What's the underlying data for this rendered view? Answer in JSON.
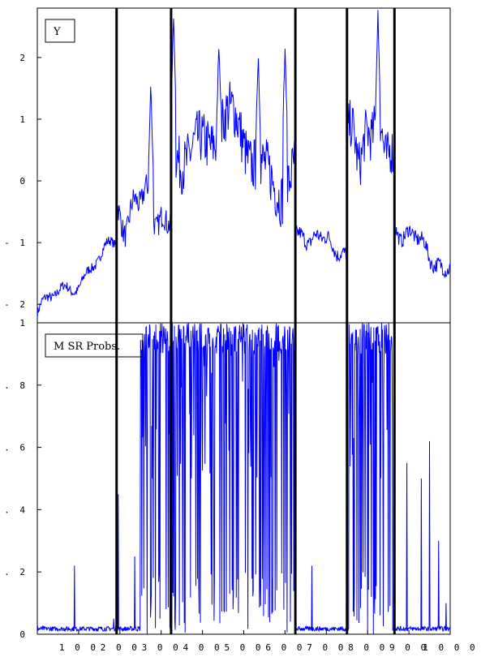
{
  "chart_data": [
    {
      "type": "line",
      "title": "",
      "xlabel": "",
      "ylabel": "",
      "legend": {
        "label": "Y",
        "placement": "top-left"
      },
      "xlim": [
        0,
        1000
      ],
      "ylim": [
        -2.3,
        2.8
      ],
      "y_ticks": [
        {
          "value": 2,
          "label": "2"
        },
        {
          "value": 1,
          "label": "1"
        },
        {
          "value": 0,
          "label": "0"
        },
        {
          "value": -1,
          "label": "- 1"
        },
        {
          "value": -2,
          "label": "- 2"
        }
      ],
      "regime_breaks": [
        192,
        324,
        625,
        750,
        865
      ],
      "series": [
        {
          "color": "#0000ff",
          "segments": [
            {
              "x": [
                0,
                192
              ],
              "start": -2.15,
              "end": -1.05,
              "wobble": 0.25,
              "noise": 0.08
            },
            {
              "x": [
                192,
                324
              ],
              "start": -0.45,
              "end": -0.45,
              "wobble": 0.55,
              "noise": 0.2,
              "peaks": [
                [
                  275,
                  1.6
                ]
              ]
            },
            {
              "x": [
                324,
                625
              ],
              "start": 0.9,
              "end": 0.2,
              "wobble": 0.8,
              "noise": 0.45,
              "peaks": [
                [
                  330,
                  2.7
                ],
                [
                  440,
                  2.3
                ],
                [
                  535,
                  2.1
                ],
                [
                  600,
                  2.2
                ]
              ]
            },
            {
              "x": [
                625,
                750
              ],
              "start": -0.8,
              "end": -1.15,
              "wobble": 0.2,
              "noise": 0.12
            },
            {
              "x": [
                750,
                865
              ],
              "start": 0.8,
              "end": 0.6,
              "wobble": 0.6,
              "noise": 0.4,
              "peaks": [
                [
                  825,
                  2.7
                ]
              ]
            },
            {
              "x": [
                865,
                1000
              ],
              "start": -0.7,
              "end": -1.45,
              "wobble": 0.25,
              "noise": 0.12
            }
          ]
        }
      ]
    },
    {
      "type": "line",
      "title": "",
      "xlabel": "",
      "ylabel": "",
      "legend": {
        "label": "M SR Probs.",
        "placement": "top-left"
      },
      "xlim": [
        0,
        1000
      ],
      "ylim": [
        0,
        1
      ],
      "x_ticks": [
        {
          "value": 100,
          "label": "1 0 0"
        },
        {
          "value": 200,
          "label": "2 0 0"
        },
        {
          "value": 300,
          "label": "3 0 0"
        },
        {
          "value": 400,
          "label": "4 0 0"
        },
        {
          "value": 500,
          "label": "5 0 0"
        },
        {
          "value": 600,
          "label": "6 0 0"
        },
        {
          "value": 700,
          "label": "7 0 0"
        },
        {
          "value": 800,
          "label": "8 0 0"
        },
        {
          "value": 900,
          "label": "9 0 0"
        },
        {
          "value": 1000,
          "label": "1 0 0 0"
        }
      ],
      "y_ticks": [
        {
          "value": 1,
          "label": "1"
        },
        {
          "value": 0.8,
          "label": "0 . 8"
        },
        {
          "value": 0.6,
          "label": "0 . 6"
        },
        {
          "value": 0.4,
          "label": "0 . 4"
        },
        {
          "value": 0.2,
          "label": "0 . 2"
        },
        {
          "value": 0,
          "label": "0"
        }
      ],
      "regime_breaks": [
        192,
        324,
        625,
        750,
        865
      ],
      "series": [
        {
          "color": "#0000ff",
          "spikes": [
            [
              90,
              0.22
            ],
            [
              185,
              0.05
            ],
            [
              196,
              0.45
            ],
            [
              236,
              0.25
            ],
            [
              262,
              0.55
            ],
            [
              410,
              0.35
            ],
            [
              665,
              0.22
            ],
            [
              895,
              0.55
            ],
            [
              930,
              0.5
            ],
            [
              950,
              0.62
            ],
            [
              972,
              0.3
            ],
            [
              990,
              0.1
            ]
          ],
          "active_ranges": [
            [
              250,
              320
            ],
            [
              324,
              625
            ],
            [
              755,
              860
            ]
          ]
        }
      ]
    }
  ]
}
